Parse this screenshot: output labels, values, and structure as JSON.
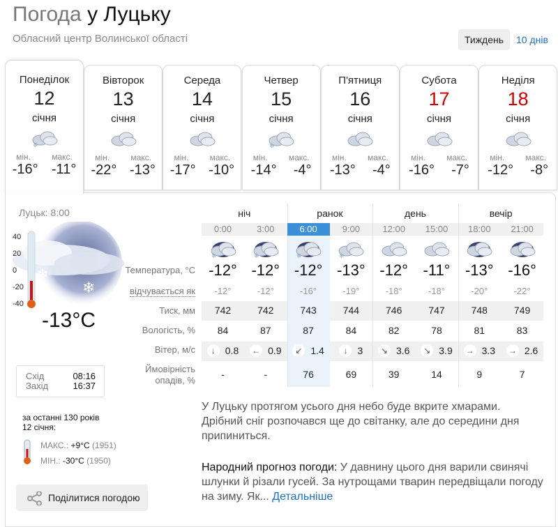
{
  "header": {
    "title_prefix": "Погода",
    "title_city": "у Луцьку",
    "subtitle": "Обласний центр Волинської області",
    "week_label": "Тиждень",
    "days10_label": "10 днів"
  },
  "days": [
    {
      "name": "Понеділок",
      "date": "12",
      "month": "січня",
      "min_label": "мін.",
      "max_label": "макс.",
      "min": "-16°",
      "max": "-11°",
      "icon": "cloud-snow-icon",
      "weekend": false
    },
    {
      "name": "Вівторок",
      "date": "13",
      "month": "січня",
      "min_label": "мін.",
      "max_label": "макс.",
      "min": "-22°",
      "max": "-13°",
      "icon": "cloud-icon",
      "weekend": false
    },
    {
      "name": "Середа",
      "date": "14",
      "month": "січня",
      "min_label": "мін.",
      "max_label": "макс.",
      "min": "-17°",
      "max": "-10°",
      "icon": "cloud-icon",
      "weekend": false
    },
    {
      "name": "Четвер",
      "date": "15",
      "month": "січня",
      "min_label": "мін.",
      "max_label": "макс.",
      "min": "-14°",
      "max": "-4°",
      "icon": "cloud-snow-icon",
      "weekend": false
    },
    {
      "name": "П'ятниця",
      "date": "16",
      "month": "січня",
      "min_label": "мін.",
      "max_label": "макс.",
      "min": "-13°",
      "max": "-4°",
      "icon": "cloud-icon",
      "weekend": false
    },
    {
      "name": "Субота",
      "date": "17",
      "month": "січня",
      "min_label": "мін.",
      "max_label": "макс.",
      "min": "-16°",
      "max": "-7°",
      "icon": "cloud-icon",
      "weekend": true
    },
    {
      "name": "Неділя",
      "date": "18",
      "month": "січня",
      "min_label": "мін.",
      "max_label": "макс.",
      "min": "-12°",
      "max": "-8°",
      "icon": "cloud-icon",
      "weekend": true
    }
  ],
  "current": {
    "label": "Луцьк: 8:00",
    "temp": "-13°C",
    "scale": [
      "40",
      "20",
      "0",
      "-20",
      "-40"
    ],
    "thermometer_level": -13,
    "sunrise_label": "Схід",
    "sunrise": "08:16",
    "sunset_label": "Захід",
    "sunset": "16:37"
  },
  "history": {
    "line1": "за останні 130 років",
    "line2": "12 січня:",
    "max_label": "МАКС.:",
    "max": "+9°C",
    "max_year": "(1951)",
    "min_label": "МІН.:",
    "min": "-30°C",
    "min_year": "(1950)"
  },
  "share_label": "Поділитися погодою",
  "table": {
    "periods": [
      "ніч",
      "ранок",
      "день",
      "вечір"
    ],
    "row_labels": {
      "temp": "Температура, °C",
      "feels": "відчувається як",
      "pressure": "Тиск, мм",
      "humidity": "Вологість, %",
      "wind": "Вітер, м/с",
      "precip1": "Ймовірність",
      "precip2": "опадів, %"
    },
    "highlight_index": 2,
    "accent": "#3a8fd8",
    "columns": [
      {
        "time": "0:00",
        "icon": "night-cloud-snow-icon",
        "temp": "-12°",
        "feels": "-12°",
        "pressure": "742",
        "humidity": "84",
        "wind_dir": "↓",
        "wind": "0.8",
        "precip": "-"
      },
      {
        "time": "3:00",
        "icon": "night-cloud-snow-icon",
        "temp": "-12°",
        "feels": "-12°",
        "pressure": "742",
        "humidity": "87",
        "wind_dir": "←",
        "wind": "0.9",
        "precip": "-"
      },
      {
        "time": "6:00",
        "icon": "night-cloud-snow-icon",
        "temp": "-12°",
        "feels": "-16°",
        "pressure": "743",
        "humidity": "87",
        "wind_dir": "↙",
        "wind": "1.4",
        "precip": "76"
      },
      {
        "time": "9:00",
        "icon": "cloud-snow-icon",
        "temp": "-13°",
        "feels": "-19°",
        "pressure": "744",
        "humidity": "84",
        "wind_dir": "↓",
        "wind": "3",
        "precip": "69"
      },
      {
        "time": "12:00",
        "icon": "cloud-icon",
        "temp": "-12°",
        "feels": "-18°",
        "pressure": "746",
        "humidity": "82",
        "wind_dir": "↘",
        "wind": "3.6",
        "precip": "39"
      },
      {
        "time": "15:00",
        "icon": "cloud-icon",
        "temp": "-11°",
        "feels": "-18°",
        "pressure": "747",
        "humidity": "78",
        "wind_dir": "↘",
        "wind": "3.9",
        "precip": "14"
      },
      {
        "time": "18:00",
        "icon": "night-cloud-icon",
        "temp": "-13°",
        "feels": "-20°",
        "pressure": "748",
        "humidity": "81",
        "wind_dir": "→",
        "wind": "3.3",
        "precip": "9"
      },
      {
        "time": "21:00",
        "icon": "night-cloud-icon",
        "temp": "-16°",
        "feels": "-22°",
        "pressure": "749",
        "humidity": "83",
        "wind_dir": "→",
        "wind": "2.6",
        "precip": "7"
      }
    ]
  },
  "description": "У Луцьку протягом усього дня небо буде вкрите хмарами. Дрібний сніг розпочався ще до світанку, але до середини дня припиниться.",
  "folk": {
    "heading": "Народний прогноз погоди:",
    "text": " У давнину цього дня варили свинячі шлунки й різали гусей. За нутрощами тварин передвіщали погоду на зиму. Як...",
    "link": "Детальніше"
  }
}
